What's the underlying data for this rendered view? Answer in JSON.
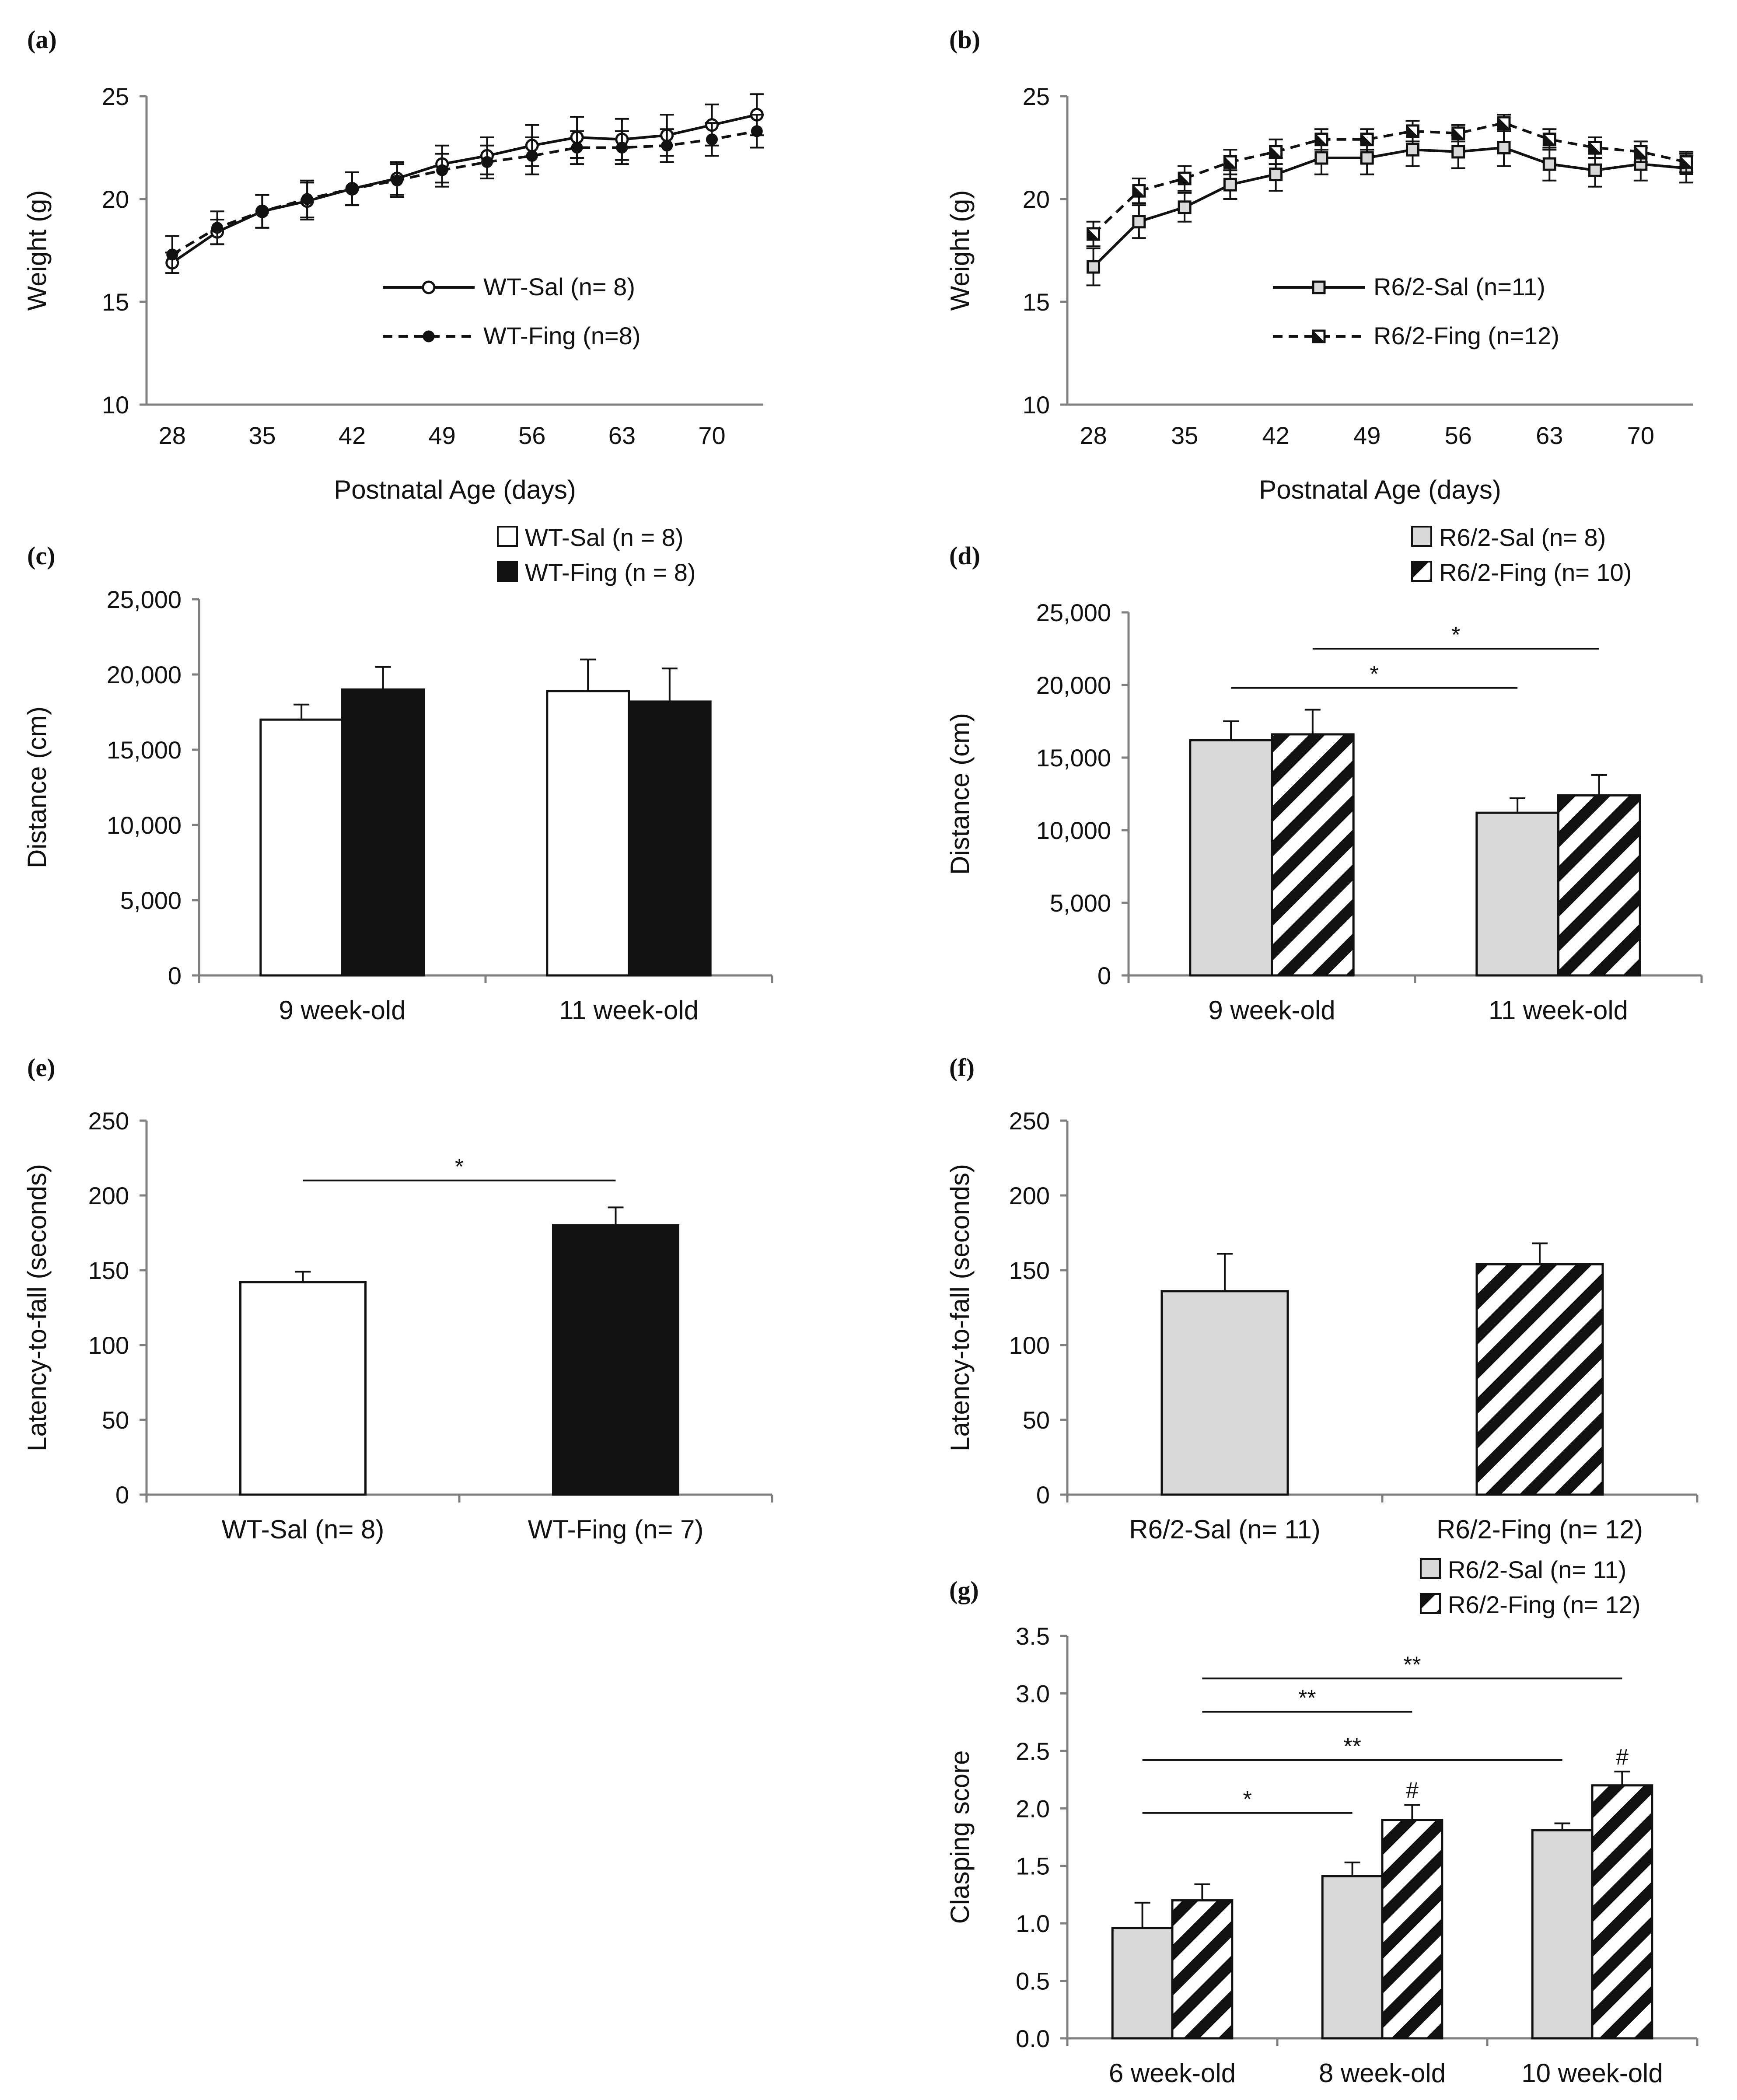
{
  "figure": {
    "panels": [
      {
        "label": "(a)",
        "chart_data": {
          "type": "line",
          "title": "",
          "xlabel": "Postnatal Age (days)",
          "ylabel": "Weight (g)",
          "xlim": [
            26,
            74
          ],
          "ylim": [
            10,
            25
          ],
          "xticks": [
            "28",
            "35",
            "42",
            "49",
            "56",
            "63",
            "70"
          ],
          "yticks": [
            "10",
            "15",
            "20",
            "25"
          ],
          "legend_position": "lower-right",
          "x": [
            28,
            31.5,
            35,
            38.5,
            42,
            45.5,
            49,
            52.5,
            56,
            59.5,
            63,
            66.5,
            70,
            73.5
          ],
          "series": [
            {
              "name": "WT-Sal (n= 8)",
              "marker": "open-circle",
              "line": "solid",
              "values": [
                16.9,
                18.4,
                19.4,
                19.9,
                20.5,
                21.0,
                21.7,
                22.1,
                22.6,
                23.0,
                22.9,
                23.1,
                23.6,
                24.1
              ],
              "errors": [
                0.5,
                0.6,
                0.8,
                0.9,
                0.8,
                0.8,
                0.9,
                0.9,
                1.0,
                1.0,
                1.0,
                1.0,
                1.0,
                1.0
              ]
            },
            {
              "name": "WT-Fing (n=8)",
              "marker": "filled-circle",
              "line": "dashed",
              "values": [
                17.3,
                18.6,
                19.4,
                20.0,
                20.5,
                20.9,
                21.4,
                21.8,
                22.1,
                22.5,
                22.5,
                22.6,
                22.9,
                23.3
              ],
              "errors": [
                0.9,
                0.8,
                0.8,
                0.9,
                0.8,
                0.8,
                0.8,
                0.8,
                0.9,
                0.8,
                0.8,
                0.8,
                0.8,
                0.8
              ]
            }
          ]
        }
      },
      {
        "label": "(b)",
        "chart_data": {
          "type": "line",
          "title": "",
          "xlabel": "Postnatal Age (days)",
          "ylabel": "Weight (g)",
          "xlim": [
            26,
            74
          ],
          "ylim": [
            10,
            25
          ],
          "xticks": [
            "28",
            "35",
            "42",
            "49",
            "56",
            "63",
            "70"
          ],
          "yticks": [
            "10",
            "15",
            "20",
            "25"
          ],
          "legend_position": "lower-right",
          "x": [
            28,
            31.5,
            35,
            38.5,
            42,
            45.5,
            49,
            52.5,
            56,
            59.5,
            63,
            66.5,
            70,
            73.5
          ],
          "series": [
            {
              "name": "R6/2-Sal (n=11)",
              "marker": "gray-square",
              "line": "solid",
              "values": [
                16.7,
                18.9,
                19.6,
                20.7,
                21.2,
                22.0,
                22.0,
                22.4,
                22.3,
                22.5,
                21.7,
                21.4,
                21.7,
                21.5
              ],
              "errors": [
                0.9,
                0.8,
                0.7,
                0.7,
                0.8,
                0.8,
                0.8,
                0.8,
                0.8,
                0.9,
                0.8,
                0.8,
                0.8,
                0.7
              ]
            },
            {
              "name": "R6/2-Fing (n=12)",
              "marker": "half-square",
              "line": "dashed",
              "values": [
                18.3,
                20.4,
                21.0,
                21.8,
                22.3,
                22.9,
                22.9,
                23.3,
                23.2,
                23.7,
                22.9,
                22.5,
                22.3,
                21.8
              ],
              "errors": [
                0.6,
                0.6,
                0.6,
                0.6,
                0.6,
                0.5,
                0.5,
                0.5,
                0.4,
                0.4,
                0.5,
                0.5,
                0.5,
                0.5
              ]
            }
          ]
        }
      },
      {
        "label": "(c)",
        "chart_data": {
          "type": "bar",
          "title": "",
          "xlabel": "",
          "ylabel": "Distance (cm)",
          "ylim": [
            0,
            25000
          ],
          "yticks": [
            "0",
            "5,000",
            "10,000",
            "15,000",
            "20,000",
            "25,000"
          ],
          "categories": [
            "9 week-old",
            "11 week-old"
          ],
          "legend_position": "top-right",
          "series": [
            {
              "name": "WT-Sal (n = 8)",
              "fill": "white",
              "values": [
                17000,
                18900
              ],
              "errors": [
                1000,
                2100
              ]
            },
            {
              "name": "WT-Fing (n = 8)",
              "fill": "black",
              "values": [
                19000,
                18200
              ],
              "errors": [
                1500,
                2200
              ]
            }
          ],
          "significance": []
        }
      },
      {
        "label": "(d)",
        "chart_data": {
          "type": "bar",
          "title": "",
          "xlabel": "",
          "ylabel": "Distance (cm)",
          "ylim": [
            0,
            25000
          ],
          "yticks": [
            "0",
            "5,000",
            "10,000",
            "15,000",
            "20,000",
            "25,000"
          ],
          "categories": [
            "9 week-old",
            "11 week-old"
          ],
          "legend_position": "top-right",
          "series": [
            {
              "name": "R6/2-Sal (n= 8)",
              "fill": "gray",
              "values": [
                16200,
                11200
              ],
              "errors": [
                1300,
                1000
              ]
            },
            {
              "name": "R6/2-Fing (n= 10)",
              "fill": "hatch",
              "values": [
                16600,
                12400
              ],
              "errors": [
                1700,
                1400
              ]
            }
          ],
          "significance": [
            {
              "label": "*",
              "from": [
                0,
                1
              ],
              "to": [
                1,
                1
              ],
              "y": 22500
            },
            {
              "label": "*",
              "from": [
                0,
                0
              ],
              "to": [
                1,
                0
              ],
              "y": 19800
            }
          ]
        }
      },
      {
        "label": "(e)",
        "chart_data": {
          "type": "bar",
          "title": "",
          "xlabel": "",
          "ylabel": "Latency-to-fall (seconds)",
          "ylim": [
            0,
            250
          ],
          "yticks": [
            "0",
            "50",
            "100",
            "150",
            "200",
            "250"
          ],
          "categories": [
            "WT-Sal (n= 8)",
            "WT-Fing (n= 7)"
          ],
          "series": [
            {
              "name": "",
              "fills": [
                "white",
                "black"
              ],
              "values": [
                142,
                180
              ],
              "errors": [
                7,
                12
              ]
            }
          ],
          "significance": [
            {
              "label": "*",
              "from": 0,
              "to": 1,
              "y": 210
            }
          ]
        }
      },
      {
        "label": "(f)",
        "chart_data": {
          "type": "bar",
          "title": "",
          "xlabel": "",
          "ylabel": "Latency-to-fall (seconds)",
          "ylim": [
            0,
            250
          ],
          "yticks": [
            "0",
            "50",
            "100",
            "150",
            "200",
            "250"
          ],
          "categories": [
            "R6/2-Sal (n= 11)",
            "R6/2-Fing (n= 12)"
          ],
          "series": [
            {
              "name": "",
              "fills": [
                "gray",
                "hatch"
              ],
              "values": [
                136,
                154
              ],
              "errors": [
                25,
                14
              ]
            }
          ],
          "significance": []
        }
      },
      {
        "label": "(g)",
        "chart_data": {
          "type": "bar",
          "title": "",
          "xlabel": "",
          "ylabel": "Clasping score",
          "ylim": [
            0,
            3.5
          ],
          "yticks": [
            "0.0",
            "0.5",
            "1.0",
            "1.5",
            "2.0",
            "2.5",
            "3.0",
            "3.5"
          ],
          "categories": [
            "6 week-old",
            "8 week-old",
            "10 week-old"
          ],
          "legend_position": "top-right",
          "series": [
            {
              "name": "R6/2-Sal (n= 11)",
              "fill": "gray",
              "values": [
                0.96,
                1.41,
                1.81
              ],
              "errors": [
                0.22,
                0.12,
                0.06
              ]
            },
            {
              "name": "R6/2-Fing (n= 12)",
              "fill": "hatch",
              "values": [
                1.2,
                1.9,
                2.2
              ],
              "errors": [
                0.14,
                0.13,
                0.12
              ]
            }
          ],
          "significance": [
            {
              "label": "**",
              "from": [
                0,
                1
              ],
              "to": [
                2,
                1
              ],
              "y": 3.13
            },
            {
              "label": "**",
              "from": [
                0,
                1
              ],
              "to": [
                1,
                1
              ],
              "y": 2.84
            },
            {
              "label": "**",
              "from": [
                0,
                0
              ],
              "to": [
                2,
                0
              ],
              "y": 2.42
            },
            {
              "label": "*",
              "from": [
                0,
                0
              ],
              "to": [
                1,
                0
              ],
              "y": 1.96
            },
            {
              "label": "#",
              "from": [
                1,
                1
              ],
              "to": [
                1,
                1
              ],
              "y": 2.09,
              "kind": "mark"
            },
            {
              "label": "#",
              "from": [
                2,
                1
              ],
              "to": [
                2,
                1
              ],
              "y": 2.38,
              "kind": "mark"
            }
          ]
        }
      }
    ]
  }
}
